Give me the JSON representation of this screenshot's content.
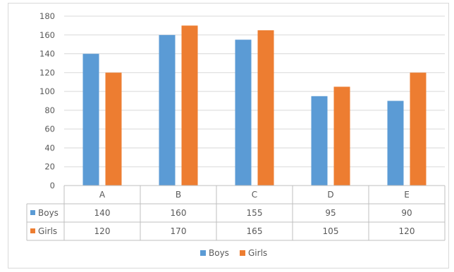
{
  "chart_data": {
    "type": "bar",
    "title": "",
    "xlabel": "",
    "ylabel": "",
    "categories": [
      "A",
      "B",
      "C",
      "D",
      "E"
    ],
    "ylim": [
      0,
      180
    ],
    "yticks": [
      0,
      20,
      40,
      60,
      80,
      100,
      120,
      140,
      160,
      180
    ],
    "grid": true,
    "legend_position": "bottom",
    "data_table": true,
    "series": [
      {
        "name": "Boys",
        "color": "#5b9bd5",
        "values": [
          140,
          160,
          155,
          95,
          90
        ]
      },
      {
        "name": "Girls",
        "color": "#ed7d31",
        "values": [
          120,
          170,
          165,
          105,
          120
        ]
      }
    ]
  }
}
